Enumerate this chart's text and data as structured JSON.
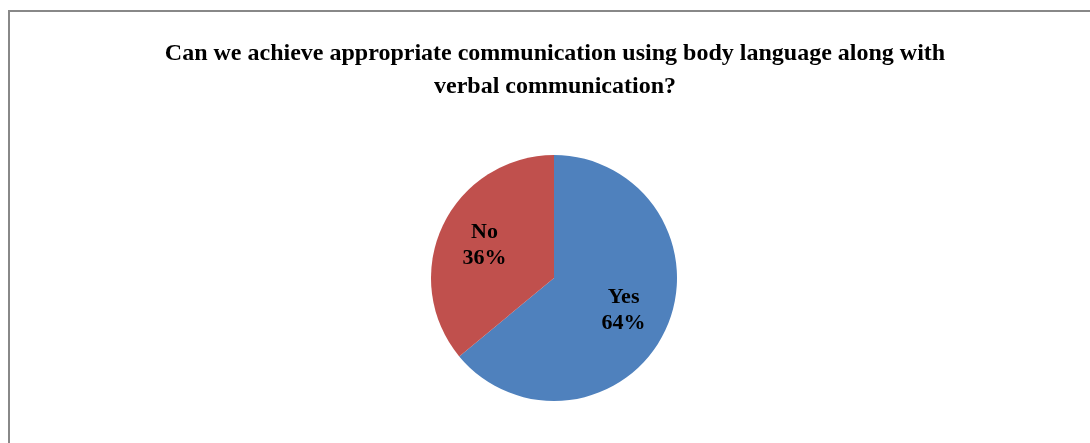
{
  "chart_data": {
    "type": "pie",
    "title": "Can we achieve appropriate communication using body language along with verbal communication?",
    "categories": [
      "Yes",
      "No"
    ],
    "values": [
      64,
      36
    ],
    "colors": [
      "#4f81bd",
      "#c0504d"
    ],
    "value_labels": [
      "64%",
      "36%"
    ],
    "legend": false
  }
}
